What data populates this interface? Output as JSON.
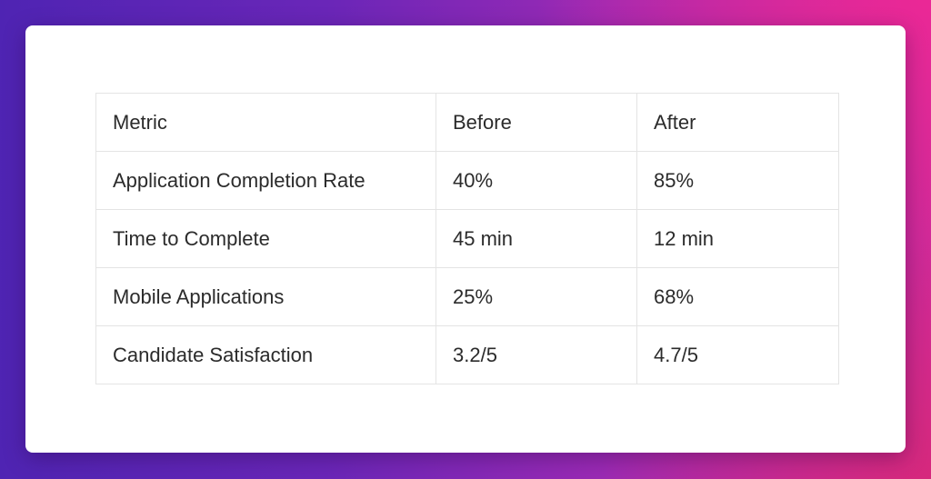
{
  "table": {
    "headers": [
      "Metric",
      "Before",
      "After"
    ],
    "rows": [
      [
        "Application Completion Rate",
        "40%",
        "85%"
      ],
      [
        "Time to Complete",
        "45 min",
        "12 min"
      ],
      [
        "Mobile Applications",
        "25%",
        "68%"
      ],
      [
        "Candidate Satisfaction",
        "3.2/5",
        "4.7/5"
      ]
    ]
  },
  "colors": {
    "background_left": "#4f24b3",
    "background_right": "#cf2a98",
    "card": "#ffffff",
    "border": "#e4e4e4",
    "text": "#2b2b2b"
  }
}
